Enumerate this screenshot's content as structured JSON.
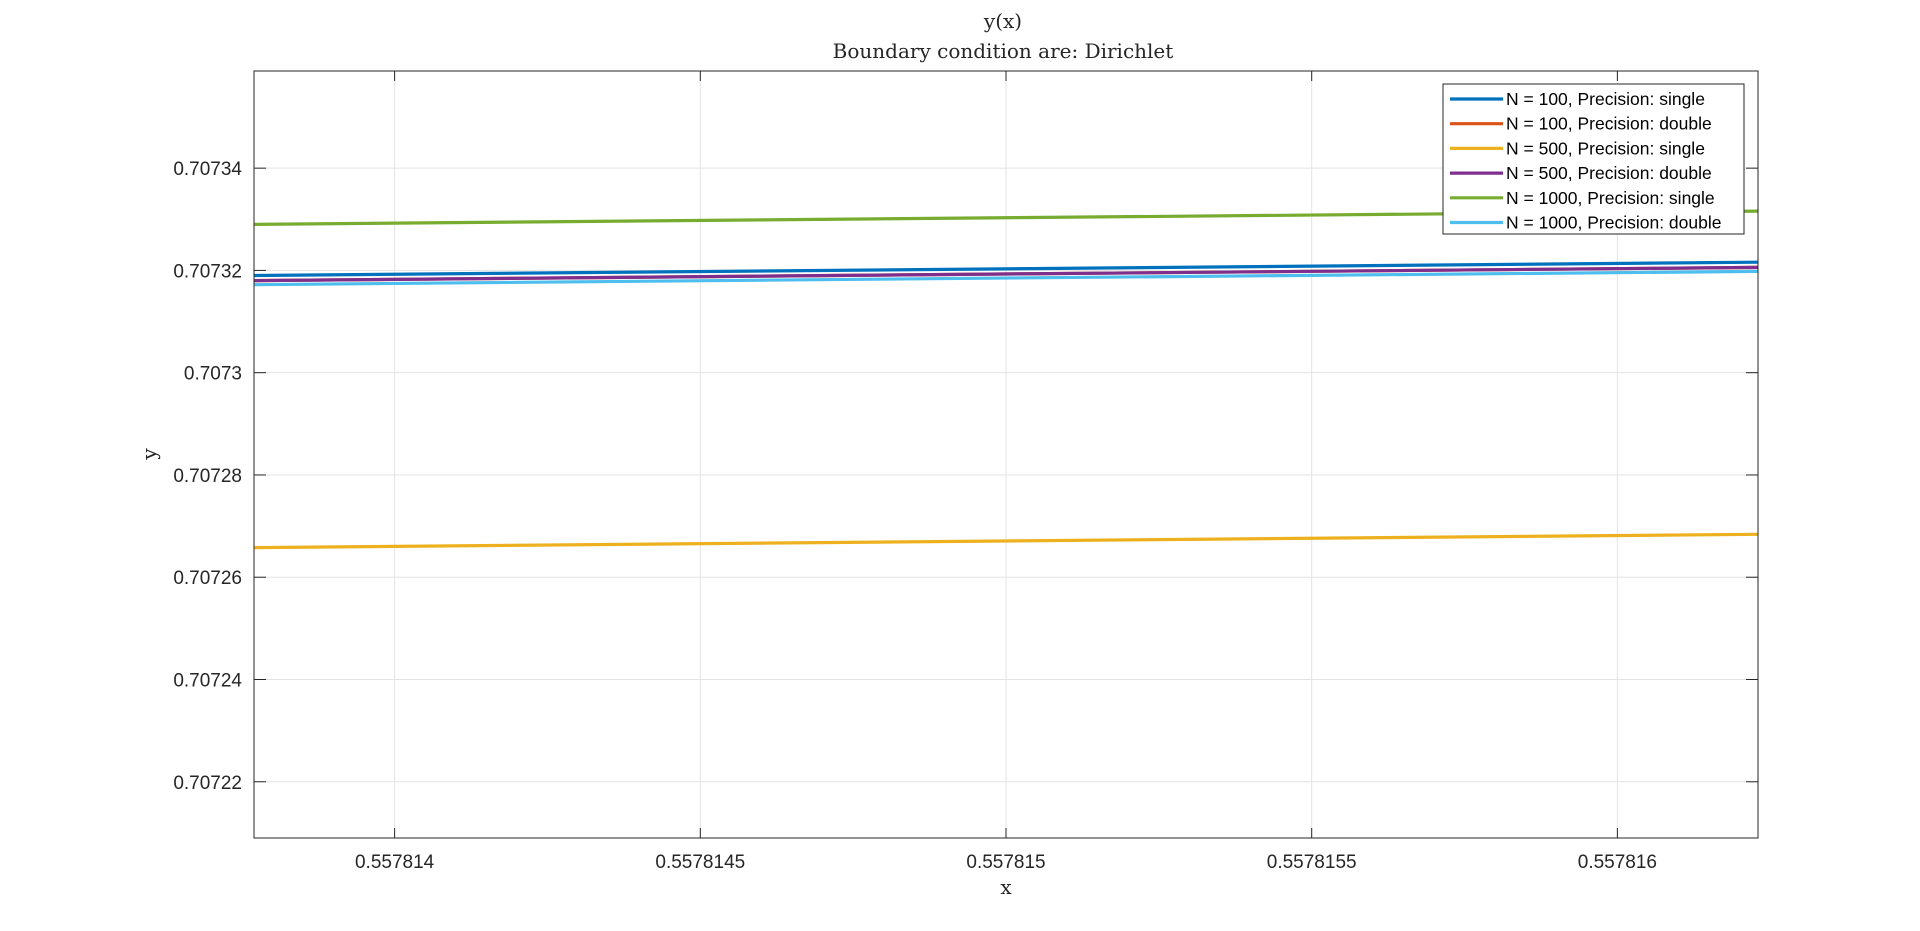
{
  "chart_data": {
    "type": "line",
    "title": "y(x)",
    "subtitle": "Boundary condition are: Dirichlet",
    "xlabel": "x",
    "ylabel": "y",
    "xlim": [
      0.55781377,
      0.55781623
    ],
    "ylim": [
      0.707209,
      0.707359
    ],
    "x_ticks": [
      0.557814,
      0.5578145,
      0.557815,
      0.5578155,
      0.557816
    ],
    "x_tick_labels": [
      "0.557814",
      "0.5578145",
      "0.557815",
      "0.5578155",
      "0.557816"
    ],
    "y_ticks": [
      0.70722,
      0.70724,
      0.70726,
      0.70728,
      0.7073,
      0.70732,
      0.70734
    ],
    "y_tick_labels": [
      "0.70722",
      "0.70724",
      "0.70726",
      "0.70728",
      "0.7073",
      "0.70732",
      "0.70734"
    ],
    "grid": true,
    "legend_position": "top-right",
    "series": [
      {
        "name": "N = 100, Precision: single",
        "color": "#0072BD",
        "x": [
          0.55781377,
          0.55781623
        ],
        "y": [
          0.707319,
          0.7073216
        ]
      },
      {
        "name": "N = 100, Precision: double",
        "color": "#D95319",
        "x": [
          0.55781377,
          0.55781623
        ],
        "y": [
          0.707318,
          0.7073206
        ]
      },
      {
        "name": "N = 500, Precision: single",
        "color": "#EDB120",
        "x": [
          0.55781377,
          0.55781623
        ],
        "y": [
          0.7072658,
          0.7072684
        ]
      },
      {
        "name": "N = 500, Precision: double",
        "color": "#7E2F8E",
        "x": [
          0.55781377,
          0.55781623
        ],
        "y": [
          0.707318,
          0.7073206
        ]
      },
      {
        "name": "N = 1000, Precision: single",
        "color": "#77AC30",
        "x": [
          0.55781377,
          0.55781623
        ],
        "y": [
          0.707329,
          0.7073316
        ]
      },
      {
        "name": "N = 1000, Precision: double",
        "color": "#4DBEEE",
        "x": [
          0.55781377,
          0.55781623
        ],
        "y": [
          0.7073172,
          0.7073198
        ]
      }
    ]
  }
}
